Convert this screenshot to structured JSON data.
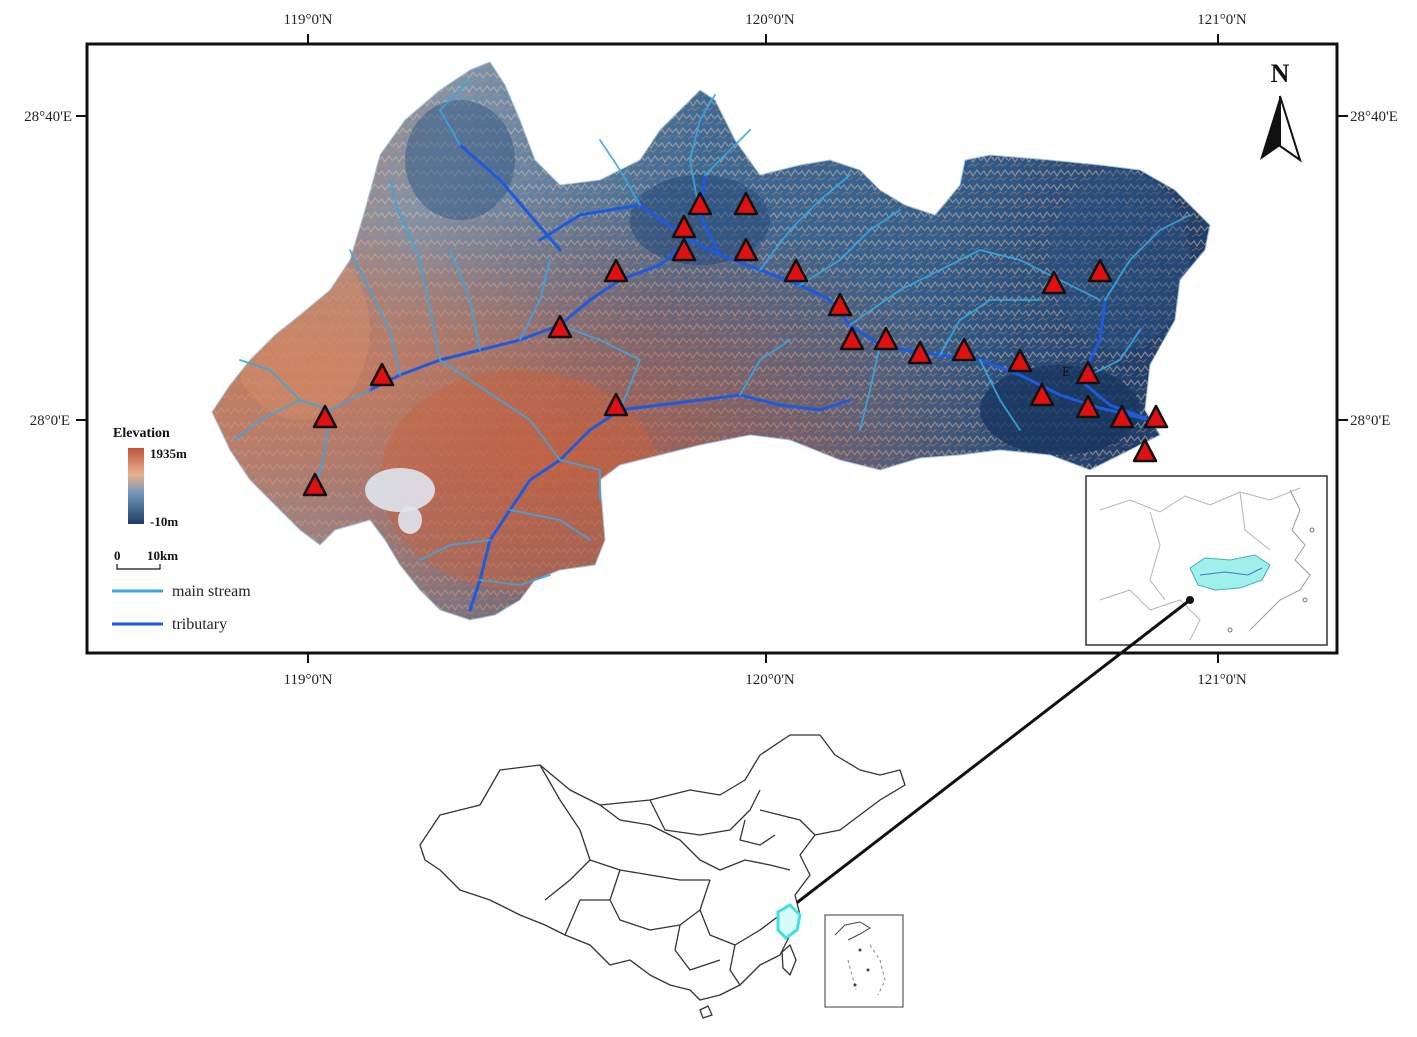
{
  "map": {
    "top_axis_labels": [
      "119°0'N",
      "120°0'N",
      "121°0'N"
    ],
    "bottom_axis_labels": [
      "119°0'N",
      "120°0'N",
      "121°0'N"
    ],
    "left_axis_labels": [
      "28°40'E",
      "28°0'E"
    ],
    "right_axis_labels": [
      "28°40'E",
      "28°0'E"
    ],
    "north_label": "N",
    "point_label": "E"
  },
  "legend": {
    "elevation_title": "Elevation",
    "elevation_max": "1935m",
    "elevation_min": "-10m",
    "scale_zero": "0",
    "scale_distance": "10km",
    "main_stream_label": "main stream",
    "tributary_label": "tributary"
  },
  "colors": {
    "elevation_high": "#c0553a",
    "elevation_mid": "#e8b090",
    "elevation_low": "#2a4d7a",
    "main_stream": "#38a8e0",
    "tributary": "#1e5adc",
    "station_fill": "#e01010",
    "inset_highlight": "#9ff0ea"
  }
}
